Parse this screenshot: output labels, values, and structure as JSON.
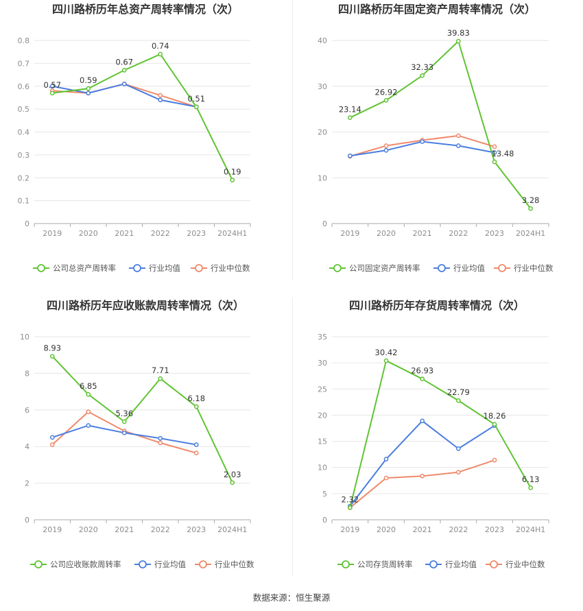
{
  "colors": {
    "company": "#5ec431",
    "avg": "#4a7de0",
    "median": "#f0896a"
  },
  "source": "数据来源：恒生聚源",
  "charts": [
    {
      "title": "四川路桥历年总资产周转率情况（次）",
      "legend": [
        "公司总资产周转率",
        "行业均值",
        "行业中位数"
      ],
      "chart_data": {
        "type": "line",
        "categories": [
          "2019",
          "2020",
          "2021",
          "2022",
          "2023",
          "2024H1"
        ],
        "ylim": [
          0,
          0.8
        ],
        "yticks": [
          "0",
          "0.1",
          "0.2",
          "0.3",
          "0.4",
          "0.5",
          "0.6",
          "0.7",
          "0.8"
        ],
        "series": [
          {
            "name": "公司总资产周转率",
            "values": [
              0.57,
              0.59,
              0.67,
              0.74,
              0.51,
              0.19
            ],
            "labels": [
              "0.57",
              "0.59",
              "0.67",
              "0.74",
              "0.51",
              "0.19"
            ]
          },
          {
            "name": "行业均值",
            "values": [
              0.6,
              0.57,
              0.61,
              0.54,
              0.51,
              null
            ]
          },
          {
            "name": "行业中位数",
            "values": [
              0.58,
              0.57,
              0.61,
              0.56,
              0.51,
              null
            ]
          }
        ]
      }
    },
    {
      "title": "四川路桥历年固定资产周转率情况（次）",
      "legend": [
        "公司固定资产周转率",
        "行业均值",
        "行业中位数"
      ],
      "chart_data": {
        "type": "line",
        "categories": [
          "2019",
          "2020",
          "2021",
          "2022",
          "2023",
          "2024H1"
        ],
        "ylim": [
          0,
          40
        ],
        "yticks": [
          "0",
          "10",
          "20",
          "30",
          "40"
        ],
        "series": [
          {
            "name": "公司固定资产周转率",
            "values": [
              23.14,
              26.92,
              32.33,
              39.83,
              13.48,
              3.28
            ],
            "labels": [
              "23.14",
              "26.92",
              "32.33",
              "39.83",
              "13.48",
              "3.28"
            ]
          },
          {
            "name": "行业均值",
            "values": [
              14.8,
              16.0,
              17.9,
              17.0,
              15.5,
              null
            ]
          },
          {
            "name": "行业中位数",
            "values": [
              14.7,
              17.0,
              18.2,
              19.2,
              16.8,
              null
            ]
          }
        ]
      }
    },
    {
      "title": "四川路桥历年应收账款周转率情况（次）",
      "legend": [
        "公司应收账款周转率",
        "行业均值",
        "行业中位数"
      ],
      "chart_data": {
        "type": "line",
        "categories": [
          "2019",
          "2020",
          "2021",
          "2022",
          "2023",
          "2024H1"
        ],
        "ylim": [
          0,
          10
        ],
        "yticks": [
          "0",
          "2",
          "4",
          "6",
          "8",
          "10"
        ],
        "series": [
          {
            "name": "公司应收账款周转率",
            "values": [
              8.93,
              6.85,
              5.36,
              7.71,
              6.18,
              2.03
            ],
            "labels": [
              "8.93",
              "6.85",
              "5.36",
              "7.71",
              "6.18",
              "2.03"
            ]
          },
          {
            "name": "行业均值",
            "values": [
              4.5,
              5.15,
              4.75,
              4.45,
              4.1,
              null
            ]
          },
          {
            "name": "行业中位数",
            "values": [
              4.1,
              5.9,
              4.85,
              4.2,
              3.65,
              null
            ]
          }
        ]
      }
    },
    {
      "title": "四川路桥历年存货周转率情况（次）",
      "legend": [
        "公司存货周转率",
        "行业均值",
        "行业中位数"
      ],
      "chart_data": {
        "type": "line",
        "categories": [
          "2019",
          "2020",
          "2021",
          "2022",
          "2023",
          "2024H1"
        ],
        "ylim": [
          0,
          35
        ],
        "yticks": [
          "0",
          "5",
          "10",
          "15",
          "20",
          "25",
          "30",
          "35"
        ],
        "series": [
          {
            "name": "公司存货周转率",
            "values": [
              2.32,
              30.42,
              26.93,
              22.79,
              18.26,
              6.13
            ],
            "labels": [
              "2.32",
              "30.42",
              "26.93",
              "22.79",
              "18.26",
              "6.13"
            ]
          },
          {
            "name": "行业均值",
            "values": [
              2.6,
              11.6,
              18.9,
              13.6,
              18.0,
              null
            ]
          },
          {
            "name": "行业中位数",
            "values": [
              2.3,
              8.0,
              8.35,
              9.1,
              11.4,
              null
            ]
          }
        ]
      }
    }
  ]
}
